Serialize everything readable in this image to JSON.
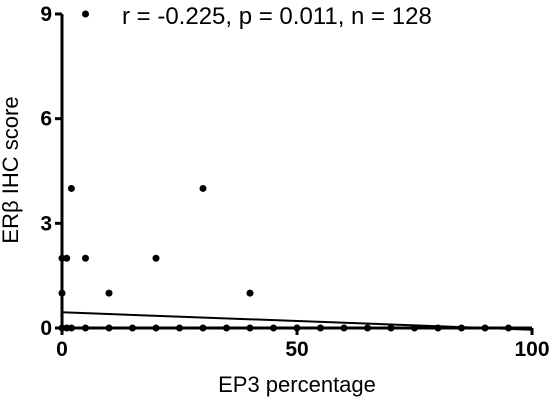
{
  "chart_data": {
    "type": "scatter",
    "title": "",
    "annotation": "r = -0.225, p = 0.011, n = 128",
    "xlabel": "EP3 percentage",
    "ylabel": "ERβ IHC score",
    "xlim": [
      0,
      100
    ],
    "ylim": [
      0,
      9
    ],
    "xticks": [
      0,
      50,
      100
    ],
    "yticks": [
      0,
      3,
      6,
      9
    ],
    "grid": false,
    "legend": "none",
    "colors": {
      "points": "#000000",
      "axes": "#000000",
      "line": "#000000"
    },
    "points": [
      {
        "x": 0,
        "y": 0
      },
      {
        "x": 1,
        "y": 0
      },
      {
        "x": 2,
        "y": 0
      },
      {
        "x": 5,
        "y": 0
      },
      {
        "x": 10,
        "y": 0
      },
      {
        "x": 15,
        "y": 0
      },
      {
        "x": 20,
        "y": 0
      },
      {
        "x": 25,
        "y": 0
      },
      {
        "x": 30,
        "y": 0
      },
      {
        "x": 35,
        "y": 0
      },
      {
        "x": 40,
        "y": 0
      },
      {
        "x": 45,
        "y": 0
      },
      {
        "x": 50,
        "y": 0
      },
      {
        "x": 55,
        "y": 0
      },
      {
        "x": 60,
        "y": 0
      },
      {
        "x": 65,
        "y": 0
      },
      {
        "x": 70,
        "y": 0
      },
      {
        "x": 75,
        "y": 0
      },
      {
        "x": 80,
        "y": 0
      },
      {
        "x": 85,
        "y": 0
      },
      {
        "x": 90,
        "y": 0
      },
      {
        "x": 95,
        "y": 0
      },
      {
        "x": 0,
        "y": 1
      },
      {
        "x": 10,
        "y": 1
      },
      {
        "x": 40,
        "y": 1
      },
      {
        "x": 0,
        "y": 2
      },
      {
        "x": 1,
        "y": 2
      },
      {
        "x": 5,
        "y": 2
      },
      {
        "x": 20,
        "y": 2
      },
      {
        "x": 2,
        "y": 4
      },
      {
        "x": 30,
        "y": 4
      },
      {
        "x": 5,
        "y": 9
      }
    ],
    "regression": {
      "x": [
        0,
        100
      ],
      "y": [
        0.45,
        -0.05
      ]
    }
  }
}
